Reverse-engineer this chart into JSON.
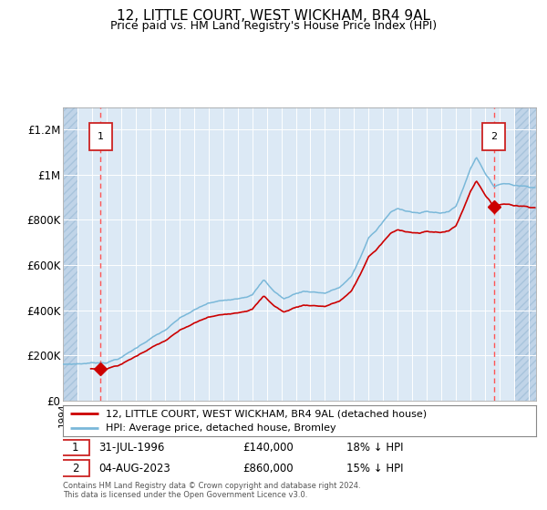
{
  "title": "12, LITTLE COURT, WEST WICKHAM, BR4 9AL",
  "subtitle": "Price paid vs. HM Land Registry's House Price Index (HPI)",
  "title_fontsize": 11,
  "subtitle_fontsize": 9,
  "background_color": "#dce9f5",
  "grid_color": "#ffffff",
  "red_line_color": "#cc0000",
  "blue_line_color": "#7ab8d9",
  "dashed_line_color": "#ff6666",
  "marker_color": "#cc0000",
  "xmin": 1994.0,
  "xmax": 2026.5,
  "ymin": 0,
  "ymax": 1300000,
  "yticks": [
    0,
    200000,
    400000,
    600000,
    800000,
    1000000,
    1200000
  ],
  "ytick_labels": [
    "£0",
    "£200K",
    "£400K",
    "£600K",
    "£800K",
    "£1M",
    "£1.2M"
  ],
  "sale1_x": 1996.58,
  "sale1_y": 140000,
  "sale2_x": 2023.59,
  "sale2_y": 860000,
  "legend_label1": "12, LITTLE COURT, WEST WICKHAM, BR4 9AL (detached house)",
  "legend_label2": "HPI: Average price, detached house, Bromley",
  "sale1_date": "31-JUL-1996",
  "sale1_price": "£140,000",
  "sale1_hpi": "18% ↓ HPI",
  "sale2_date": "04-AUG-2023",
  "sale2_price": "£860,000",
  "sale2_hpi": "15% ↓ HPI",
  "footer1": "Contains HM Land Registry data © Crown copyright and database right 2024.",
  "footer2": "This data is licensed under the Open Government Licence v3.0."
}
